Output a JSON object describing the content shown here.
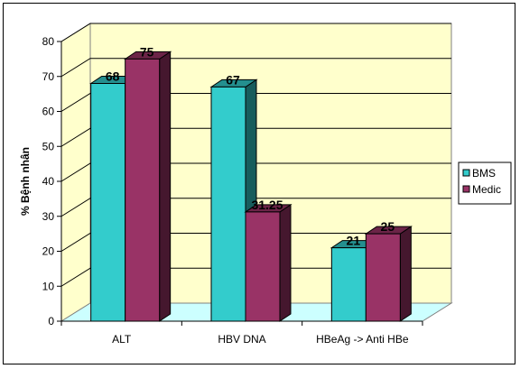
{
  "chart_data": {
    "type": "bar",
    "title": "",
    "xlabel": "",
    "ylabel": "% Bệnh nhân",
    "ylim": [
      0,
      80
    ],
    "yticks": [
      0,
      10,
      20,
      30,
      40,
      50,
      60,
      70,
      80
    ],
    "categories": [
      "ALT",
      "HBV DNA",
      "HBeAg -> Anti HBe"
    ],
    "series": [
      {
        "name": "BMS",
        "values": [
          68,
          67,
          21
        ],
        "labels": [
          "68",
          "67",
          "21"
        ],
        "color": "#33cccc"
      },
      {
        "name": "Medic",
        "values": [
          75,
          31.25,
          25
        ],
        "labels": [
          "75",
          "31.25",
          "25"
        ],
        "color": "#993366"
      }
    ],
    "grid": true,
    "legend_position": "right",
    "plot_wall_color": "#ffffcc",
    "floor_color": "#ccffff",
    "three_d": true
  }
}
